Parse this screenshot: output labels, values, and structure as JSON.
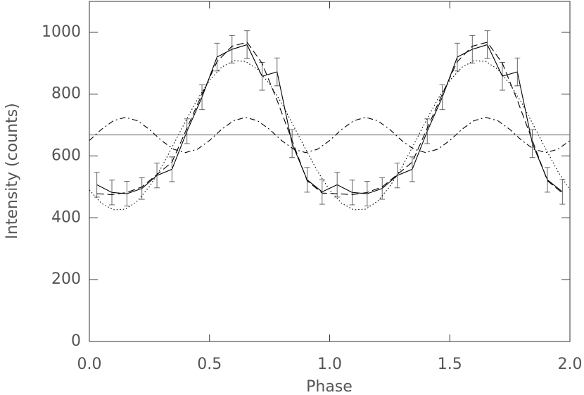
{
  "chart_data": {
    "type": "line",
    "xlabel": "Phase",
    "ylabel": "Intensity (counts)",
    "xlim": [
      0,
      2
    ],
    "ylim": [
      0,
      1100
    ],
    "xticks": [
      {
        "value": 0,
        "label": "0.0"
      },
      0.5,
      {
        "value": 1,
        "label": "1.0"
      },
      1.5,
      {
        "value": 2,
        "label": "2.0"
      }
    ],
    "yticks": [
      0,
      200,
      400,
      600,
      800,
      1000
    ],
    "series": [
      {
        "style": "solid",
        "color": "#000000",
        "x": [
          0.03125,
          0.09375,
          0.15625,
          0.21875,
          0.28125,
          0.34375,
          0.40625,
          0.46875,
          0.53125,
          0.59375,
          0.65625,
          0.71875,
          0.78125,
          0.84375,
          0.90625,
          0.96875,
          1.03125,
          1.09375,
          1.15625,
          1.21875,
          1.28125,
          1.34375,
          1.40625,
          1.46875,
          1.53125,
          1.59375,
          1.65625,
          1.71875,
          1.78125,
          1.84375,
          1.90625,
          1.96875
        ],
        "values": [
          507,
          482,
          478,
          495,
          537,
          557,
          680,
          790,
          920,
          945,
          960,
          858,
          872,
          640,
          523,
          484,
          507,
          482,
          478,
          495,
          537,
          557,
          680,
          790,
          920,
          945,
          960,
          858,
          872,
          640,
          523,
          484
        ],
        "errors": [
          40,
          40,
          40,
          35,
          40,
          40,
          40,
          40,
          45,
          45,
          45,
          45,
          45,
          45,
          40,
          40,
          40,
          40,
          40,
          35,
          40,
          40,
          40,
          40,
          45,
          45,
          45,
          45,
          45,
          45,
          40,
          40
        ]
      },
      {
        "style": "dashed",
        "color": "#000000",
        "x": [
          0.03125,
          0.09375,
          0.15625,
          0.21875,
          0.28125,
          0.34375,
          0.40625,
          0.46875,
          0.53125,
          0.59375,
          0.65625,
          0.71875,
          0.78125,
          0.84375,
          0.90625,
          0.96875,
          1.03125,
          1.09375,
          1.15625,
          1.21875,
          1.28125,
          1.34375,
          1.40625,
          1.46875,
          1.53125,
          1.59375,
          1.65625,
          1.71875,
          1.78125,
          1.84375,
          1.90625,
          1.96875
        ],
        "values": [
          478,
          475,
          482,
          500,
          540,
          580,
          690,
          800,
          905,
          955,
          968,
          900,
          780,
          650,
          520,
          480,
          478,
          475,
          482,
          500,
          540,
          580,
          690,
          800,
          905,
          955,
          968,
          900,
          780,
          650,
          520,
          480
        ]
      },
      {
        "style": "dotted",
        "color": "#000000",
        "x": [
          0,
          0.05,
          0.1,
          0.15,
          0.2,
          0.25,
          0.3,
          0.35,
          0.4,
          0.45,
          0.5,
          0.55,
          0.6,
          0.65,
          0.7,
          0.75,
          0.8,
          0.85,
          0.9,
          0.95,
          1,
          1.05,
          1.1,
          1.15,
          1.2,
          1.25,
          1.3,
          1.35,
          1.4,
          1.45,
          1.5,
          1.55,
          1.6,
          1.65,
          1.7,
          1.75,
          1.8,
          1.85,
          1.9,
          1.95,
          2
        ],
        "values": [
          490,
          447,
          426,
          428,
          454,
          501,
          563,
          637,
          712,
          784,
          844,
          887,
          908,
          906,
          880,
          833,
          771,
          697,
          622,
          550,
          490,
          447,
          426,
          428,
          454,
          501,
          563,
          637,
          712,
          784,
          844,
          887,
          908,
          906,
          880,
          833,
          771,
          697,
          622,
          550,
          490
        ]
      },
      {
        "style": "dashdot",
        "color": "#000000",
        "x": [
          0,
          0.05,
          0.1,
          0.15,
          0.2,
          0.25,
          0.3,
          0.35,
          0.4,
          0.45,
          0.5,
          0.55,
          0.6,
          0.65,
          0.7,
          0.75,
          0.8,
          0.85,
          0.9,
          0.95,
          1,
          1.05,
          1.1,
          1.15,
          1.2,
          1.25,
          1.3,
          1.35,
          1.4,
          1.45,
          1.5,
          1.55,
          1.6,
          1.65,
          1.7,
          1.75,
          1.8,
          1.85,
          1.9,
          1.95,
          2
        ],
        "values": [
          650,
          686,
          714,
          725,
          714,
          686,
          650,
          622,
          611,
          622,
          650,
          686,
          714,
          725,
          714,
          686,
          650,
          622,
          611,
          622,
          650,
          686,
          714,
          725,
          714,
          686,
          650,
          622,
          611,
          622,
          650,
          686,
          714,
          725,
          714,
          686,
          650,
          622,
          611,
          622,
          650
        ]
      },
      {
        "style": "thin",
        "color": "#555555",
        "x": [
          0,
          2
        ],
        "values": [
          668,
          668
        ]
      }
    ]
  }
}
